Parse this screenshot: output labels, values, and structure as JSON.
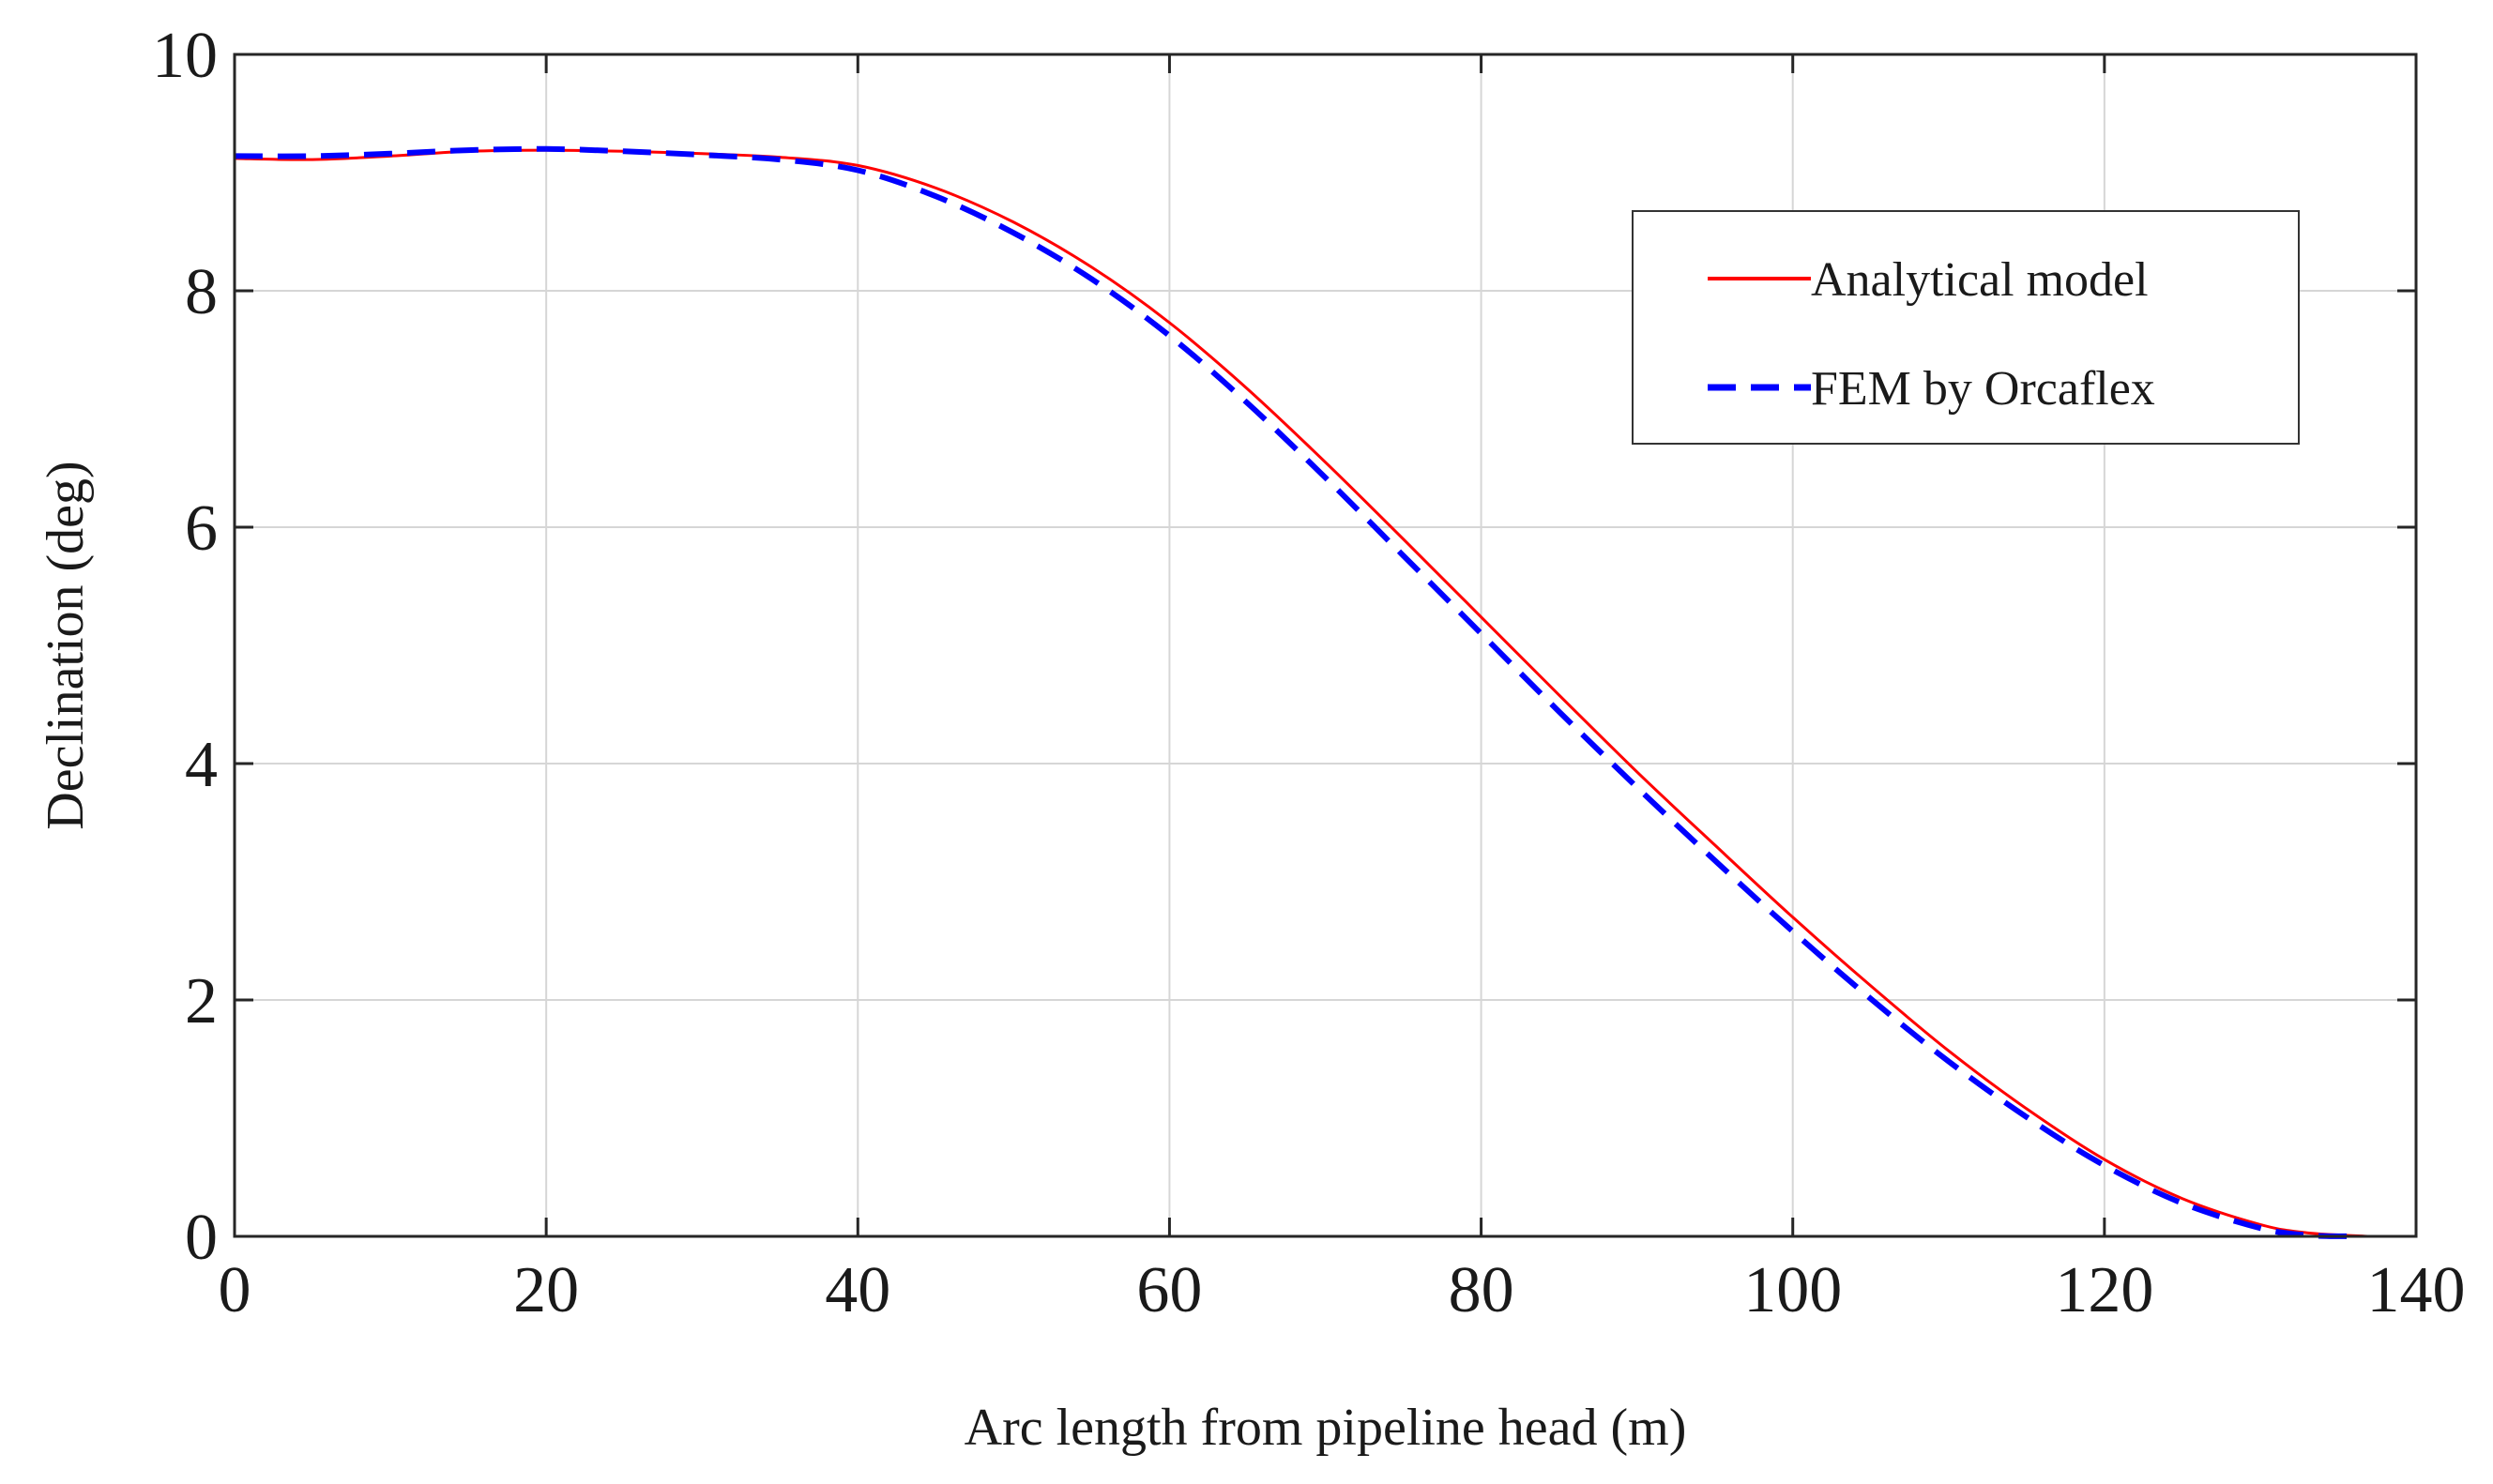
{
  "chart_data": {
    "type": "line",
    "title": "",
    "xlabel": "Arc length from pipeline head (m)",
    "ylabel": "Declination (deg)",
    "xlim": [
      0,
      140
    ],
    "ylim": [
      0,
      10
    ],
    "xticks": [
      0,
      20,
      40,
      60,
      80,
      100,
      120,
      140
    ],
    "yticks": [
      0,
      2,
      4,
      6,
      8,
      10
    ],
    "xtick_labels": [
      "0",
      "20",
      "40",
      "60",
      "80",
      "100",
      "120",
      "140"
    ],
    "ytick_labels": [
      "0",
      "2",
      "4",
      "6",
      "8",
      "10"
    ],
    "grid": true,
    "legend_position": "top-right",
    "series": [
      {
        "name": "Analytical model",
        "color": "#ff0000",
        "style": "solid",
        "x": [
          0,
          5,
          10,
          15,
          20,
          25,
          30,
          35,
          40,
          45,
          50,
          55,
          60,
          65,
          70,
          75,
          80,
          85,
          90,
          95,
          100,
          105,
          110,
          115,
          120,
          125,
          130,
          133,
          137
        ],
        "y": [
          9.12,
          9.11,
          9.14,
          9.18,
          9.19,
          9.18,
          9.16,
          9.13,
          9.06,
          8.87,
          8.58,
          8.2,
          7.73,
          7.17,
          6.55,
          5.9,
          5.24,
          4.58,
          3.93,
          3.31,
          2.7,
          2.12,
          1.57,
          1.08,
          0.65,
          0.32,
          0.1,
          0.03,
          0.0
        ]
      },
      {
        "name": "FEM by Orcaflex",
        "color": "#0000ff",
        "style": "dashed",
        "x": [
          0,
          5,
          10,
          15,
          20,
          25,
          30,
          35,
          40,
          45,
          50,
          55,
          60,
          65,
          70,
          75,
          80,
          85,
          90,
          95,
          100,
          105,
          110,
          115,
          120,
          125,
          130,
          133,
          136
        ],
        "y": [
          9.14,
          9.14,
          9.16,
          9.19,
          9.2,
          9.18,
          9.15,
          9.11,
          9.02,
          8.8,
          8.49,
          8.1,
          7.62,
          7.05,
          6.42,
          5.76,
          5.1,
          4.44,
          3.8,
          3.18,
          2.58,
          2.01,
          1.48,
          1.01,
          0.6,
          0.28,
          0.07,
          0.01,
          0.0
        ]
      }
    ]
  }
}
